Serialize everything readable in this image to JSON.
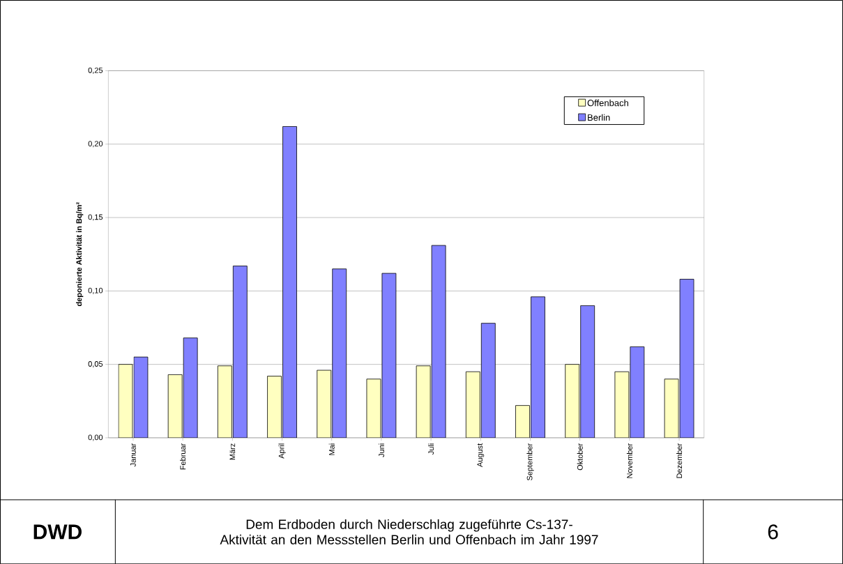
{
  "chart_data": {
    "type": "bar",
    "title": "Dem Erdboden durch Niederschlag zugeführte Cs-137-Aktivität an den Messstellen Berlin und Offenbach im Jahr 1997",
    "ylabel": "deponierte Aktivität in Bq/m²",
    "annotations": [
      "DWD",
      "6"
    ],
    "categories": [
      "Januar",
      "Februar",
      "März",
      "April",
      "Mai",
      "Juni",
      "Juli",
      "August",
      "September",
      "Oktober",
      "November",
      "Dezember"
    ],
    "series": [
      {
        "name": "Offenbach",
        "color": "#ffffc0",
        "values": [
          0.05,
          0.043,
          0.049,
          0.042,
          0.046,
          0.04,
          0.049,
          0.045,
          0.022,
          0.05,
          0.045,
          0.04
        ]
      },
      {
        "name": "Berlin",
        "color": "#8080ff",
        "values": [
          0.055,
          0.068,
          0.117,
          0.212,
          0.115,
          0.112,
          0.131,
          0.078,
          0.096,
          0.09,
          0.062,
          0.108
        ]
      }
    ],
    "ylim": [
      0,
      0.25
    ],
    "yticks": [
      {
        "value": 0,
        "label": "0,00"
      },
      {
        "value": 0.05,
        "label": "0,05"
      },
      {
        "value": 0.1,
        "label": "0,10"
      },
      {
        "value": 0.15,
        "label": "0,15"
      },
      {
        "value": 0.2,
        "label": "0,20"
      },
      {
        "value": 0.25,
        "label": "0,25"
      }
    ],
    "grid": "y",
    "legend": "top right"
  }
}
